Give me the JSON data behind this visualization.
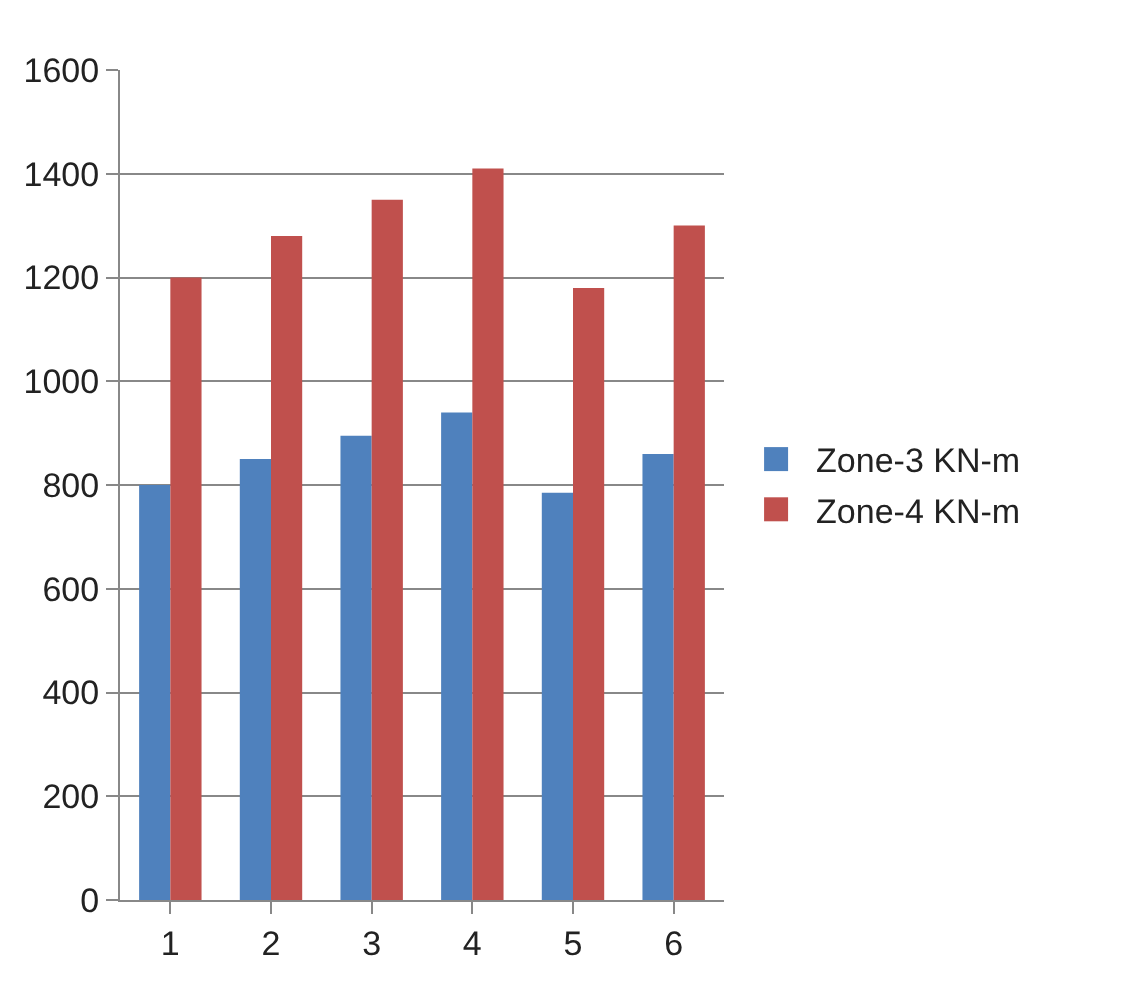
{
  "chart_data": {
    "type": "bar",
    "categories": [
      "1",
      "2",
      "3",
      "4",
      "5",
      "6"
    ],
    "series": [
      {
        "name": "Zone-3 KN-m",
        "color": "#4f81bd",
        "values": [
          800,
          850,
          895,
          940,
          785,
          860
        ]
      },
      {
        "name": "Zone-4 KN-m",
        "color": "#c0504d",
        "values": [
          1200,
          1280,
          1350,
          1410,
          1180,
          1300
        ]
      }
    ],
    "ylim": [
      0,
      1600
    ],
    "yticks": [
      0,
      200,
      400,
      600,
      800,
      1000,
      1200,
      1400,
      1600
    ],
    "grid": "y",
    "legend": "right"
  }
}
